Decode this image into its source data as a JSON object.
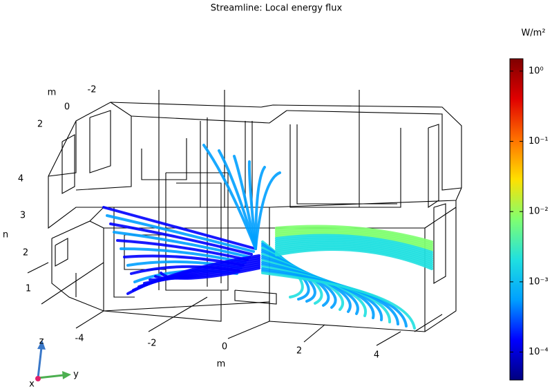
{
  "chart_data": {
    "type": "streamline",
    "title": "Streamline: Local energy flux",
    "colorbar": {
      "unit": "W/m²",
      "log": true,
      "clim": [
        4e-05,
        1.5
      ],
      "ticks": [
        {
          "value": 1,
          "label": "10⁰"
        },
        {
          "value": 0.1,
          "label": "10⁻¹"
        },
        {
          "value": 0.01,
          "label": "10⁻²"
        },
        {
          "value": 0.001,
          "label": "10⁻³"
        },
        {
          "value": 0.0001,
          "label": "10⁻⁴"
        }
      ],
      "colors": [
        "#00007f",
        "#0000ff",
        "#00a0ff",
        "#20e0e0",
        "#80ff70",
        "#ffe000",
        "#ff7000",
        "#e00000",
        "#7f0000"
      ]
    },
    "x_axis": {
      "label": "m",
      "ticks": [
        -4,
        -2,
        0,
        2,
        4
      ]
    },
    "y_axis": {
      "label": "m",
      "ticks": [
        2,
        0,
        -2
      ]
    },
    "z_axis": {
      "label": "n",
      "ticks": [
        1,
        2,
        3,
        4
      ]
    },
    "triad": [
      "x",
      "y",
      "z"
    ]
  }
}
